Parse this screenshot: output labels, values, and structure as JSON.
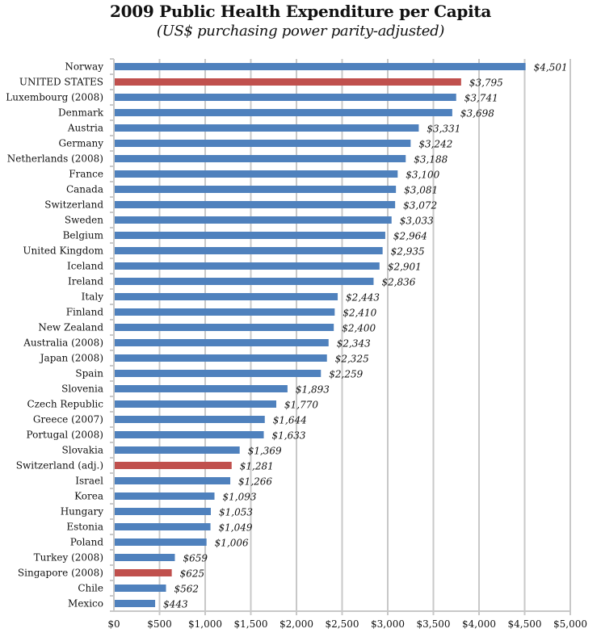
{
  "chart_data": {
    "type": "bar",
    "orientation": "horizontal",
    "title": "2009 Public Health Expenditure per Capita",
    "subtitle": "(US$ purchasing power parity-adjusted)",
    "xlabel": "",
    "ylabel": "",
    "xlim": [
      0,
      5000
    ],
    "grid": true,
    "colors": {
      "default": "#4f81bd",
      "highlight": "#c0504d",
      "grid": "#c8c8c8"
    },
    "x_ticks": [
      "$0",
      "$500",
      "$1,000",
      "$1,500",
      "$2,000",
      "$2,500",
      "$3,000",
      "$3,500",
      "$4,000",
      "$4,500",
      "$5,000"
    ],
    "x_tick_values": [
      0,
      500,
      1000,
      1500,
      2000,
      2500,
      3000,
      3500,
      4000,
      4500,
      5000
    ],
    "categories": [
      "Norway",
      "UNITED STATES",
      "Luxembourg (2008)",
      "Denmark",
      "Austria",
      "Germany",
      "Netherlands (2008)",
      "France",
      "Canada",
      "Switzerland",
      "Sweden",
      "Belgium",
      "United Kingdom",
      "Iceland",
      "Ireland",
      "Italy",
      "Finland",
      "New Zealand",
      "Australia (2008)",
      "Japan (2008)",
      "Spain",
      "Slovenia",
      "Czech Republic",
      "Greece (2007)",
      "Portugal (2008)",
      "Slovakia",
      "Switzerland (adj.)",
      "Israel",
      "Korea",
      "Hungary",
      "Estonia",
      "Poland",
      "Turkey (2008)",
      "Singapore (2008)",
      "Chile",
      "Mexico"
    ],
    "values": [
      4501,
      3795,
      3741,
      3698,
      3331,
      3242,
      3188,
      3100,
      3081,
      3072,
      3033,
      2964,
      2935,
      2901,
      2836,
      2443,
      2410,
      2400,
      2343,
      2325,
      2259,
      1893,
      1770,
      1644,
      1633,
      1369,
      1281,
      1266,
      1093,
      1053,
      1049,
      1006,
      659,
      625,
      562,
      443
    ],
    "value_labels": [
      "$4,501",
      "$3,795",
      "$3,741",
      "$3,698",
      "$3,331",
      "$3,242",
      "$3,188",
      "$3,100",
      "$3,081",
      "$3,072",
      "$3,033",
      "$2,964",
      "$2,935",
      "$2,901",
      "$2,836",
      "$2,443",
      "$2,410",
      "$2,400",
      "$2,343",
      "$2,325",
      "$2,259",
      "$1,893",
      "$1,770",
      "$1,644",
      "$1,633",
      "$1,369",
      "$1,281",
      "$1,266",
      "$1,093",
      "$1,053",
      "$1,049",
      "$1,006",
      "$659",
      "$625",
      "$562",
      "$443"
    ],
    "highlighted": [
      "UNITED STATES",
      "Switzerland (adj.)",
      "Singapore (2008)"
    ]
  }
}
